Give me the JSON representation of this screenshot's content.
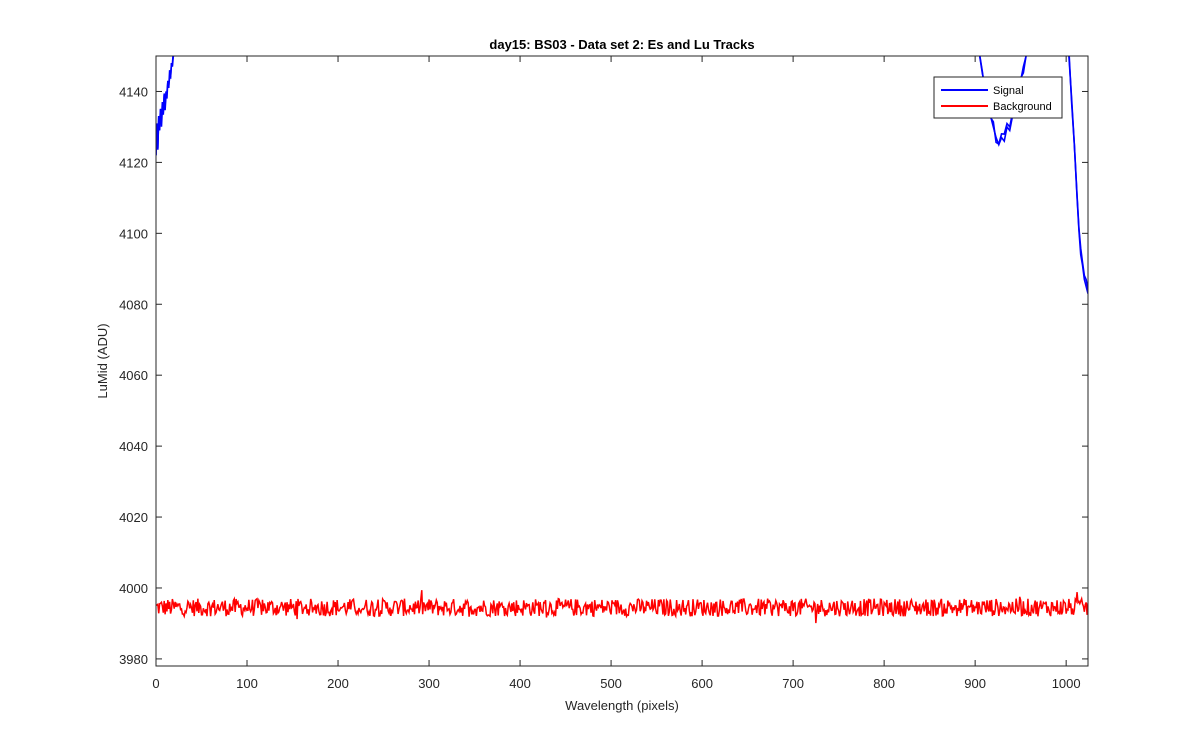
{
  "chart_data": {
    "type": "line",
    "title": "day15: BS03 - Data set 2: Es and Lu Tracks",
    "xlabel": "Wavelength (pixels)",
    "ylabel": "LuMid (ADU)",
    "xlim": [
      0,
      1024
    ],
    "ylim": [
      3978,
      4150
    ],
    "x_ticks": [
      0,
      100,
      200,
      300,
      400,
      500,
      600,
      700,
      800,
      900,
      1000
    ],
    "y_ticks": [
      3980,
      4000,
      4020,
      4040,
      4060,
      4080,
      4100,
      4120,
      4140
    ],
    "grid": false,
    "legend_position": "top-right",
    "series": [
      {
        "name": "Signal",
        "color": "#0000ff",
        "segments": [
          {
            "x": [
              0,
              1,
              2,
              3,
              4,
              5,
              6,
              7,
              8,
              9,
              10,
              11,
              12,
              13,
              14,
              15,
              16,
              17,
              18,
              19,
              20
            ],
            "y": [
              4122,
              4131,
              4124,
              4133,
              4129,
              4135,
              4132,
              4137,
              4134,
              4139,
              4136,
              4140,
              4138,
              4143,
              4141,
              4146,
              4144,
              4148,
              4147,
              4150,
              4150
            ]
          },
          {
            "x": [
              905,
              908,
              911,
              914,
              917,
              920,
              923,
              926,
              929,
              932,
              935,
              938,
              941,
              944,
              947,
              950,
              953,
              956
            ],
            "y": [
              4150,
              4145,
              4141,
              4136,
              4133,
              4130,
              4127,
              4125,
              4127,
              4126,
              4130,
              4129,
              4133,
              4136,
              4139,
              4143,
              4147,
              4150
            ]
          },
          {
            "x": [
              1003,
              1006,
              1009,
              1012,
              1014,
              1016,
              1018,
              1020,
              1022,
              1024
            ],
            "y": [
              4150,
              4138,
              4125,
              4110,
              4101,
              4094,
              4091,
              4087,
              4085,
              4083
            ]
          }
        ]
      },
      {
        "name": "Background",
        "color": "#ff0000",
        "baseline": 3994.5,
        "noise_amplitude": 2.5,
        "x_range": [
          0,
          1024
        ]
      }
    ]
  }
}
